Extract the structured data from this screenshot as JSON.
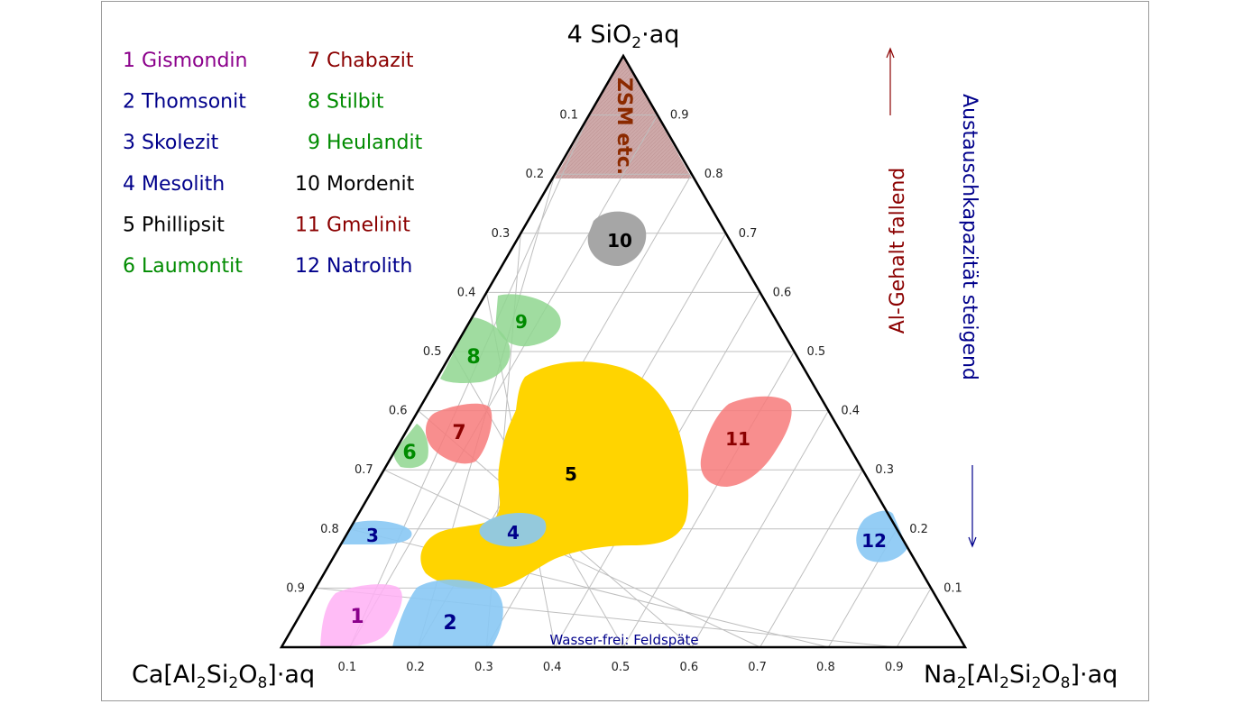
{
  "title_top": {
    "prefix": "4 SiO",
    "sub": "2",
    "mid": "·",
    "suffix": "aq"
  },
  "corner_left": {
    "a": "Ca[Al",
    "s1": "2",
    "b": "Si",
    "s2": "2",
    "c": "O",
    "s3": "8",
    "d": "]·aq"
  },
  "corner_right": {
    "a": "Na",
    "s0": "2",
    "b": "[Al",
    "s1": "2",
    "c": "Si",
    "s2": "2",
    "d": "O",
    "s3": "8",
    "e": "]·aq"
  },
  "legend": [
    {
      "label": "1 Gismondin",
      "color": "#8b008b"
    },
    {
      "label": "2 Thomsonit",
      "color": "#00008b"
    },
    {
      "label": "3 Skolezit",
      "color": "#00008b"
    },
    {
      "label": "4 Mesolith",
      "color": "#00008b"
    },
    {
      "label": "5 Phillipsit",
      "color": "#000000"
    },
    {
      "label": "6 Laumontit",
      "color": "#008b00"
    },
    {
      "label": "7 Chabazit",
      "color": "#8b0000"
    },
    {
      "label": "8 Stilbit",
      "color": "#008b00"
    },
    {
      "label": "9 Heulandit",
      "color": "#008b00"
    },
    {
      "label": "10 Mordenit",
      "color": "#000000"
    },
    {
      "label": "11 Gmelinit",
      "color": "#8b0000"
    },
    {
      "label": "12 Natrolith",
      "color": "#00008b"
    }
  ],
  "ticks_bottom": [
    "0.1",
    "0.2",
    "0.3",
    "0.4",
    "0.5",
    "0.6",
    "0.7",
    "0.8",
    "0.9"
  ],
  "ticks_left": [
    "0.1",
    "0.2",
    "0.3",
    "0.4",
    "0.5",
    "0.6",
    "0.7",
    "0.8",
    "0.9"
  ],
  "ticks_right": [
    "0.9",
    "0.8",
    "0.7",
    "0.6",
    "0.5",
    "0.4",
    "0.3",
    "0.2",
    "0.1"
  ],
  "regions": {
    "zsm": "ZSM etc.",
    "r1": "1",
    "r2": "2",
    "r3": "3",
    "r4": "4",
    "r5": "5",
    "r6": "6",
    "r7": "7",
    "r8": "8",
    "r9": "9",
    "r10": "10",
    "r11": "11",
    "r12": "12"
  },
  "note_bottom": "Wasser-frei: Feldspäte",
  "side_al": "Al-Gehalt fallend",
  "side_exchange": "Austauschkapazität steigend",
  "colors": {
    "zsm": "#c48d8d",
    "gray": "#a6a6a6",
    "green": "#8fd68f",
    "red": "#f77a7a",
    "yellow": "#ffd400",
    "blue": "#88c8f4",
    "pink": "#ffb0f4",
    "dark_red": "#8b0000",
    "dark_blue": "#00008b",
    "dark_green": "#008b00",
    "purple": "#8b008b"
  }
}
